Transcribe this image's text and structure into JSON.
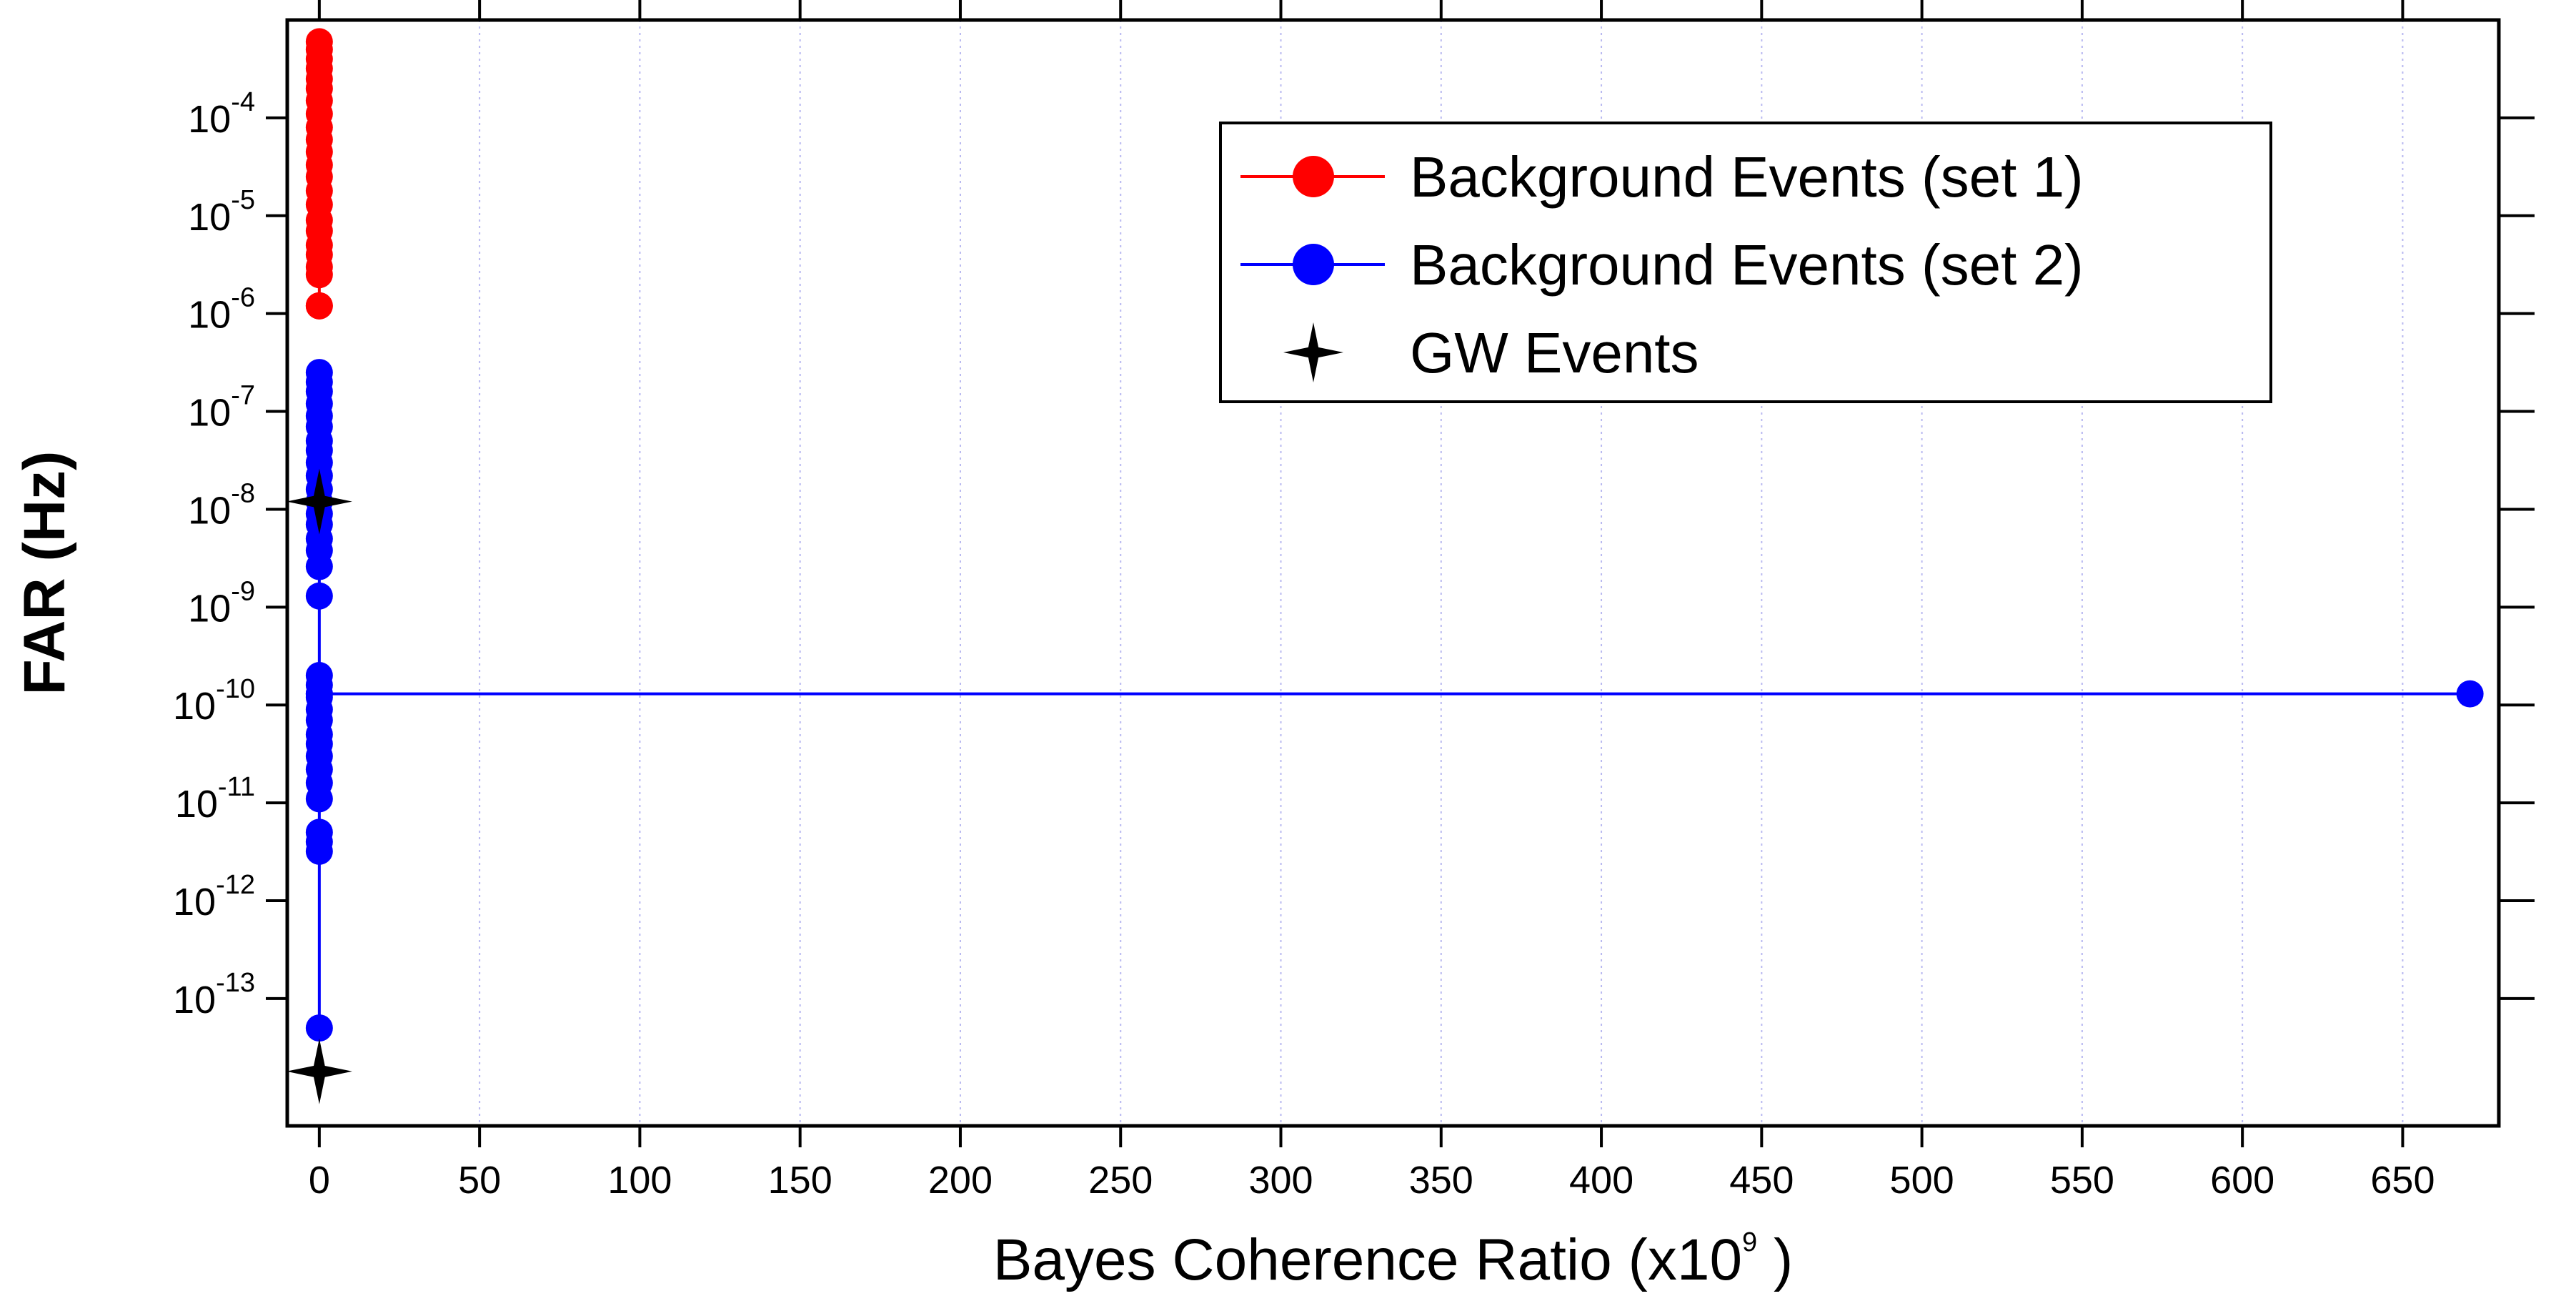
{
  "chart_data": {
    "type": "scatter",
    "xlabel": "Bayes Coherence Ratio (x10",
    "xlabel_exponent": "9",
    "xlabel_close": " )",
    "ylabel": "FAR (Hz)",
    "x_scale": "linear",
    "y_scale": "log",
    "xlim": [
      -10,
      680
    ],
    "ylim": [
      5e-15,
      0.001
    ],
    "x_ticks": [
      0,
      50,
      100,
      150,
      200,
      250,
      300,
      350,
      400,
      450,
      500,
      550,
      600,
      650
    ],
    "x_tick_labels": [
      "0",
      "50",
      "100",
      "150",
      "200",
      "250",
      "300",
      "350",
      "400",
      "450",
      "500",
      "550",
      "600",
      "650"
    ],
    "y_ticks": [
      {
        "value": 0.0001,
        "base": "10",
        "exp": "-4"
      },
      {
        "value": 1e-05,
        "base": "10",
        "exp": "-5"
      },
      {
        "value": 1e-06,
        "base": "10",
        "exp": "-6"
      },
      {
        "value": 1e-07,
        "base": "10",
        "exp": "-7"
      },
      {
        "value": 1e-08,
        "base": "10",
        "exp": "-8"
      },
      {
        "value": 1e-09,
        "base": "10",
        "exp": "-9"
      },
      {
        "value": 1e-10,
        "base": "10",
        "exp": "-10"
      },
      {
        "value": 1e-11,
        "base": "10",
        "exp": "-11"
      },
      {
        "value": 1e-12,
        "base": "10",
        "exp": "-12"
      },
      {
        "value": 1e-13,
        "base": "10",
        "exp": "-13"
      }
    ],
    "grid": "vertical dotted lines at x ticks",
    "legend_position": "top-right",
    "series": [
      {
        "name": "Background Events (set 1)",
        "color": "#ff0000",
        "marker": "circle",
        "line": true,
        "x": [
          0,
          0,
          0,
          0,
          0,
          0,
          0,
          0,
          0,
          0,
          0,
          0,
          0,
          0,
          0,
          0,
          0,
          0,
          0,
          0,
          0,
          0,
          0
        ],
        "y": [
          0.0006,
          0.0005,
          0.0004,
          0.00032,
          0.00025,
          0.0002,
          0.00015,
          0.00011,
          8e-05,
          6e-05,
          4.5e-05,
          3.3e-05,
          2.5e-05,
          1.8e-05,
          1.3e-05,
          9e-06,
          7e-06,
          5e-06,
          4e-06,
          3e-06,
          2.5e-06,
          1.2e-06,
          1.2e-06
        ]
      },
      {
        "name": "Background Events (set 2)",
        "color": "#0000ff",
        "marker": "circle",
        "line": true,
        "x": [
          0,
          0,
          0,
          0,
          0,
          0,
          0,
          0,
          0,
          0,
          0,
          0,
          0,
          0,
          0,
          0,
          0,
          0,
          0,
          0,
          0,
          0,
          0,
          0,
          0,
          0,
          0,
          0,
          0,
          0,
          0,
          0,
          0,
          0,
          0,
          671
        ],
        "y": [
          2.5e-07,
          2e-07,
          1.6e-07,
          1.2e-07,
          9e-08,
          7e-08,
          5e-08,
          4e-08,
          3e-08,
          2.2e-08,
          1.6e-08,
          1.2e-08,
          9e-09,
          7e-09,
          5e-09,
          3.8e-09,
          2.6e-09,
          1.3e-09,
          2e-10,
          1.6e-10,
          1.2e-10,
          9e-11,
          7e-11,
          5e-11,
          4e-11,
          3e-11,
          2.2e-11,
          1.6e-11,
          1.1e-11,
          5e-12,
          4e-12,
          3.2e-12,
          5e-14,
          1.3e-10,
          1.3e-10,
          1.3e-10
        ]
      },
      {
        "name": "GW Events",
        "color": "#000000",
        "marker": "star",
        "line": false,
        "x": [
          0,
          0
        ],
        "y": [
          1.2e-08,
          1.8e-14
        ]
      }
    ]
  }
}
